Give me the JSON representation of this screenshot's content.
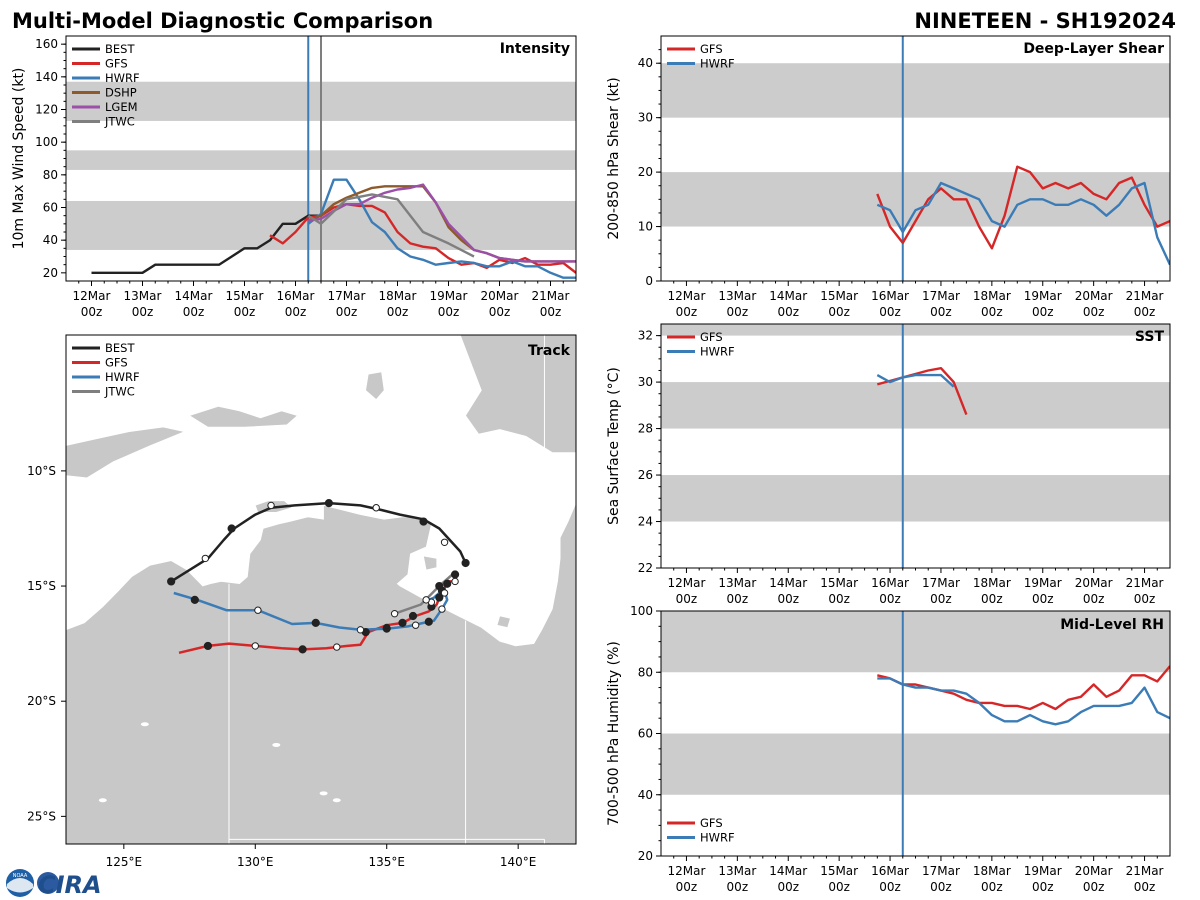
{
  "figure": {
    "title_left": "Multi-Model Diagnostic Comparison",
    "title_right": "NINETEEN - SH192024",
    "logo_text": "CIRA",
    "logo_seal_text": "NOAA"
  },
  "colors": {
    "BEST": "#222222",
    "GFS": "#d62728",
    "HWRF": "#3b7cb6",
    "DSHP": "#8c5a2b",
    "LGEM": "#9b4fa8",
    "JTWC": "#7f7f7f",
    "band": "#cccccc",
    "land": "#c8c8c8",
    "vline_hwrf": "#3b7cb6",
    "vline_jtwc": "#7f7f7f"
  },
  "time_axis": {
    "tick_labels": [
      [
        "12Mar",
        "00z"
      ],
      [
        "13Mar",
        "00z"
      ],
      [
        "14Mar",
        "00z"
      ],
      [
        "15Mar",
        "00z"
      ],
      [
        "16Mar",
        "00z"
      ],
      [
        "17Mar",
        "00z"
      ],
      [
        "18Mar",
        "00z"
      ],
      [
        "19Mar",
        "00z"
      ],
      [
        "20Mar",
        "00z"
      ],
      [
        "21Mar",
        "00z"
      ]
    ],
    "xlim_hours": [
      -12,
      228
    ],
    "xticks_hours": [
      0,
      24,
      48,
      72,
      96,
      120,
      144,
      168,
      192,
      216
    ]
  },
  "chart_data": [
    {
      "id": "intensity",
      "type": "line",
      "title": "Intensity",
      "ylabel": "10m Max Wind Speed (kt)",
      "ylim": [
        15,
        165
      ],
      "yticks": [
        20,
        40,
        60,
        80,
        100,
        120,
        140,
        160
      ],
      "bands": [
        [
          34,
          64
        ],
        [
          83,
          95
        ],
        [
          113,
          137
        ]
      ],
      "vlines": [
        {
          "x": 102,
          "color": "HWRF"
        },
        {
          "x": 108,
          "color": "JTWC"
        }
      ],
      "legend": [
        "BEST",
        "GFS",
        "HWRF",
        "DSHP",
        "LGEM",
        "JTWC"
      ],
      "series": [
        {
          "name": "BEST",
          "x": [
            0,
            24,
            30,
            36,
            48,
            60,
            66,
            72,
            78,
            84,
            90,
            96,
            102,
            108
          ],
          "values": [
            20,
            20,
            25,
            25,
            25,
            25,
            30,
            35,
            35,
            40,
            50,
            50,
            55,
            55
          ]
        },
        {
          "name": "GFS",
          "x": [
            84,
            90,
            96,
            102,
            108,
            114,
            120,
            126,
            132,
            138,
            144,
            150,
            156,
            162,
            168,
            174,
            180,
            186,
            192,
            198,
            204,
            210,
            216,
            222,
            228
          ],
          "values": [
            43,
            38,
            45,
            54,
            55,
            60,
            62,
            61,
            61,
            57,
            45,
            38,
            36,
            35,
            29,
            25,
            26,
            23,
            28,
            26,
            29,
            25,
            25,
            26,
            20
          ]
        },
        {
          "name": "HWRF",
          "x": [
            102,
            108,
            114,
            120,
            126,
            132,
            138,
            144,
            150,
            156,
            162,
            168,
            174,
            180,
            186,
            192,
            198,
            204,
            210,
            216,
            222,
            228
          ],
          "values": [
            50,
            56,
            77,
            77,
            65,
            51,
            45,
            35,
            30,
            28,
            25,
            26,
            27,
            26,
            24,
            24,
            27,
            24,
            24,
            20,
            17,
            17
          ]
        },
        {
          "name": "DSHP",
          "x": [
            102,
            108,
            114,
            120,
            126,
            132,
            138,
            144,
            150,
            156,
            162,
            168,
            174,
            180,
            186,
            192,
            198,
            204,
            210,
            216,
            222,
            228
          ],
          "values": [
            52,
            55,
            62,
            66,
            69,
            72,
            73,
            73,
            73,
            73,
            63,
            48,
            40,
            34,
            32,
            29,
            28,
            27,
            27,
            27,
            27,
            27
          ]
        },
        {
          "name": "LGEM",
          "x": [
            102,
            108,
            114,
            120,
            126,
            132,
            138,
            144,
            150,
            156,
            162,
            168,
            174,
            180,
            186,
            192,
            198,
            204,
            210,
            216,
            222,
            228
          ],
          "values": [
            52,
            53,
            58,
            62,
            62,
            66,
            69,
            71,
            72,
            74,
            63,
            50,
            42,
            34,
            32,
            29,
            28,
            27,
            27,
            27,
            27,
            27
          ]
        },
        {
          "name": "JTWC",
          "x": [
            102,
            108,
            120,
            132,
            144,
            156,
            168,
            180
          ],
          "values": [
            55,
            50,
            65,
            68,
            65,
            45,
            38,
            30
          ]
        }
      ]
    },
    {
      "id": "track",
      "type": "scatter",
      "title": "Track",
      "lon_range": [
        122.8,
        142.2
      ],
      "lat_range": [
        -26.2,
        -4.1
      ],
      "xtick_labels": [
        {
          "lon": 125,
          "label": "125°E"
        },
        {
          "lon": 130,
          "label": "130°E"
        },
        {
          "lon": 135,
          "label": "135°E"
        },
        {
          "lon": 140,
          "label": "140°E"
        }
      ],
      "ytick_labels": [
        {
          "lat": -10,
          "label": "10°S"
        },
        {
          "lat": -15,
          "label": "15°S"
        },
        {
          "lat": -20,
          "label": "20°S"
        },
        {
          "lat": -25,
          "label": "25°S"
        }
      ],
      "legend": [
        "BEST",
        "GFS",
        "HWRF",
        "JTWC"
      ],
      "series": [
        {
          "name": "BEST",
          "lon": [
            126.8,
            127.5,
            128.2,
            128.8,
            129.2,
            130.0,
            130.6,
            131.5,
            132.8,
            134.0,
            134.8,
            135.5,
            136.4,
            137.0,
            137.4,
            137.8,
            138.0
          ],
          "lat": [
            -14.8,
            -14.3,
            -13.8,
            -13.0,
            -12.5,
            -11.9,
            -11.6,
            -11.5,
            -11.4,
            -11.5,
            -11.7,
            -11.9,
            -12.1,
            -12.5,
            -13.0,
            -13.5,
            -14.0
          ],
          "markers": [
            [
              "filled",
              126.8,
              -14.8
            ],
            [
              "open",
              128.1,
              -13.8
            ],
            [
              "filled",
              129.1,
              -12.5
            ],
            [
              "open",
              130.6,
              -11.5
            ],
            [
              "filled",
              132.8,
              -11.4
            ],
            [
              "open",
              134.6,
              -11.6
            ],
            [
              "filled",
              136.4,
              -12.2
            ],
            [
              "open",
              137.2,
              -13.1
            ],
            [
              "filled",
              138.0,
              -14.0
            ]
          ]
        },
        {
          "name": "GFS",
          "lon": [
            127.1,
            128.2,
            129.0,
            130.0,
            131.0,
            131.8,
            132.7,
            133.5,
            134.0,
            134.3,
            135.0,
            135.6,
            136.1,
            136.6,
            136.9,
            137.0,
            137.2,
            137.3,
            137.5
          ],
          "lat": [
            -17.9,
            -17.6,
            -17.5,
            -17.6,
            -17.7,
            -17.75,
            -17.7,
            -17.6,
            -17.55,
            -17.0,
            -16.7,
            -16.6,
            -16.3,
            -16.1,
            -15.8,
            -15.5,
            -15.1,
            -14.8,
            -14.8
          ],
          "markers": [
            [
              "filled",
              128.2,
              -17.6
            ],
            [
              "open",
              130.0,
              -17.6
            ],
            [
              "filled",
              131.8,
              -17.75
            ],
            [
              "open",
              133.1,
              -17.65
            ],
            [
              "filled",
              134.2,
              -17.0
            ],
            [
              "open",
              135.0,
              -16.8
            ],
            [
              "filled",
              135.6,
              -16.6
            ],
            [
              "filled",
              136.0,
              -16.3
            ],
            [
              "filled",
              136.7,
              -15.9
            ],
            [
              "filled",
              137.0,
              -15.5
            ],
            [
              "filled",
              137.3,
              -14.9
            ]
          ]
        },
        {
          "name": "HWRF",
          "lon": [
            126.9,
            127.8,
            128.9,
            130.1,
            131.4,
            132.3,
            133.2,
            134.0,
            135.0,
            135.8,
            136.4,
            136.8,
            137.1,
            137.3,
            137.2,
            137.0,
            136.8,
            136.6
          ],
          "lat": [
            -15.3,
            -15.6,
            -16.05,
            -16.05,
            -16.65,
            -16.6,
            -16.8,
            -16.9,
            -16.85,
            -16.75,
            -16.6,
            -16.5,
            -16.0,
            -15.6,
            -15.2,
            -15.3,
            -15.5,
            -15.6
          ],
          "markers": [
            [
              "filled",
              127.7,
              -15.6
            ],
            [
              "open",
              130.1,
              -16.05
            ],
            [
              "filled",
              132.3,
              -16.6
            ],
            [
              "open",
              134.0,
              -16.9
            ],
            [
              "filled",
              135.0,
              -16.85
            ],
            [
              "open",
              136.1,
              -16.7
            ],
            [
              "filled",
              136.6,
              -16.55
            ],
            [
              "open",
              137.1,
              -16.0
            ],
            [
              "filled",
              137.1,
              -15.2
            ],
            [
              "open",
              136.7,
              -15.7
            ]
          ]
        },
        {
          "name": "JTWC",
          "lon": [
            135.3,
            136.3,
            137.0,
            137.5
          ],
          "lat": [
            -16.2,
            -15.8,
            -15.0,
            -14.5
          ],
          "markers": [
            [
              "open",
              135.3,
              -16.2
            ],
            [
              "open",
              136.5,
              -15.6
            ],
            [
              "filled",
              137.0,
              -15.0
            ],
            [
              "open",
              137.2,
              -15.3
            ],
            [
              "open",
              137.6,
              -14.8
            ],
            [
              "filled",
              137.6,
              -14.5
            ]
          ]
        }
      ]
    },
    {
      "id": "shear",
      "type": "line",
      "title": "Deep-Layer Shear",
      "ylabel": "200-850 hPa Shear (kt)",
      "ylim": [
        0,
        45
      ],
      "yticks": [
        0,
        10,
        20,
        30,
        40
      ],
      "bands": [
        [
          10,
          20
        ],
        [
          30,
          40
        ]
      ],
      "vlines": [
        {
          "x": 102,
          "color": "HWRF"
        }
      ],
      "legend": [
        "GFS",
        "HWRF"
      ],
      "series": [
        {
          "name": "GFS",
          "x": [
            90,
            96,
            102,
            108,
            114,
            120,
            126,
            132,
            138,
            144,
            150,
            156,
            162,
            168,
            174,
            180,
            186,
            192,
            198,
            204,
            210,
            216,
            222,
            228
          ],
          "values": [
            16,
            10,
            7,
            11,
            15,
            17,
            15,
            15,
            10,
            6,
            12,
            21,
            20,
            17,
            18,
            17,
            18,
            16,
            15,
            18,
            19,
            14,
            10,
            11
          ]
        },
        {
          "name": "HWRF",
          "x": [
            90,
            96,
            102,
            108,
            114,
            120,
            126,
            132,
            138,
            144,
            150,
            156,
            162,
            168,
            174,
            180,
            186,
            192,
            198,
            204,
            210,
            216,
            222,
            228
          ],
          "values": [
            14,
            13,
            9,
            13,
            14,
            18,
            17,
            16,
            15,
            11,
            10,
            14,
            15,
            15,
            14,
            14,
            15,
            14,
            12,
            14,
            17,
            18,
            8,
            3
          ]
        }
      ]
    },
    {
      "id": "sst",
      "type": "line",
      "title": "SST",
      "ylabel": "Sea Surface Temp (°C)",
      "ylim": [
        22,
        32.5
      ],
      "yticks": [
        22,
        24,
        26,
        28,
        30,
        32
      ],
      "bands": [
        [
          24,
          26
        ],
        [
          28,
          30
        ],
        [
          32,
          33
        ]
      ],
      "vlines": [
        {
          "x": 102,
          "color": "HWRF"
        }
      ],
      "legend": [
        "GFS",
        "HWRF"
      ],
      "series": [
        {
          "name": "GFS",
          "x": [
            90,
            102,
            114,
            120,
            126,
            132
          ],
          "values": [
            29.9,
            30.2,
            30.5,
            30.6,
            30.0,
            28.6
          ]
        },
        {
          "name": "HWRF",
          "x": [
            90,
            96,
            102,
            108,
            114,
            120,
            126
          ],
          "values": [
            30.3,
            30.0,
            30.2,
            30.3,
            30.3,
            30.3,
            29.8
          ]
        }
      ]
    },
    {
      "id": "rh",
      "type": "line",
      "title": "Mid-Level RH",
      "ylabel": "700-500 hPa Humidity (%)",
      "ylim": [
        20,
        100
      ],
      "yticks": [
        20,
        40,
        60,
        80,
        100
      ],
      "bands": [
        [
          40,
          60
        ],
        [
          80,
          100
        ]
      ],
      "vlines": [
        {
          "x": 102,
          "color": "HWRF"
        }
      ],
      "legend": [
        "GFS",
        "HWRF"
      ],
      "series": [
        {
          "name": "GFS",
          "x": [
            90,
            96,
            102,
            108,
            114,
            120,
            126,
            132,
            138,
            144,
            150,
            156,
            162,
            168,
            174,
            180,
            186,
            192,
            198,
            204,
            210,
            216,
            222,
            228
          ],
          "values": [
            79,
            78,
            76,
            76,
            75,
            74,
            73,
            71,
            70,
            70,
            69,
            69,
            68,
            70,
            68,
            71,
            72,
            76,
            72,
            74,
            79,
            79,
            77,
            82
          ]
        },
        {
          "name": "HWRF",
          "x": [
            90,
            96,
            102,
            108,
            114,
            120,
            126,
            132,
            138,
            144,
            150,
            156,
            162,
            168,
            174,
            180,
            186,
            192,
            198,
            204,
            210,
            216,
            222,
            228
          ],
          "values": [
            78,
            78,
            76,
            75,
            75,
            74,
            74,
            73,
            70,
            66,
            64,
            64,
            66,
            64,
            63,
            64,
            67,
            69,
            69,
            69,
            70,
            75,
            67,
            65
          ]
        }
      ]
    }
  ]
}
